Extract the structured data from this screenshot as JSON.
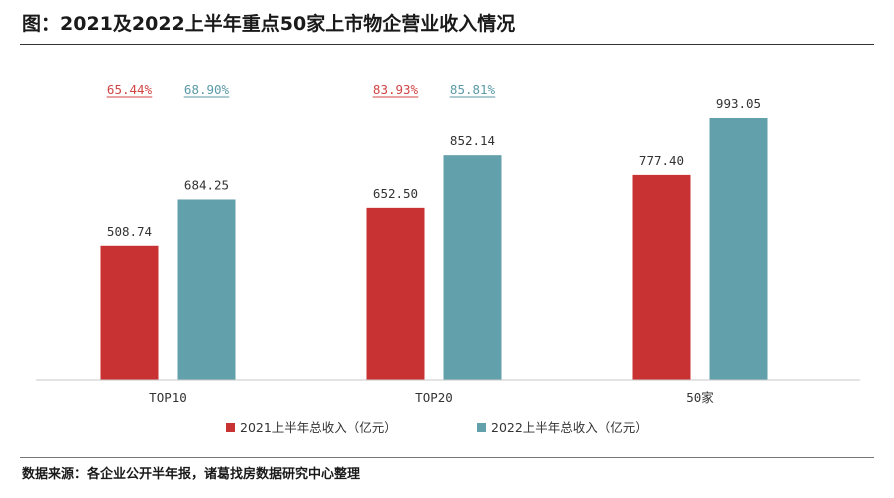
{
  "header": {
    "title": "图：2021及2022上半年重点50家上市物企营业收入情况"
  },
  "footer": {
    "source": "数据来源：各企业公开半年报，诸葛找房数据研究中心整理"
  },
  "chart_data": {
    "type": "bar",
    "categories": [
      "TOP10",
      "TOP20",
      "50家"
    ],
    "series": [
      {
        "name": "2021上半年总收入（亿元）",
        "values": [
          508.74,
          652.5,
          777.4
        ],
        "labels": [
          "508.74",
          "652.50",
          "777.40"
        ],
        "color": "#c83232"
      },
      {
        "name": "2022上半年总收入（亿元）",
        "values": [
          684.25,
          852.14,
          993.05
        ],
        "labels": [
          "684.25",
          "852.14",
          "993.05"
        ],
        "color": "#62a0ab"
      }
    ],
    "annotations": [
      {
        "category": "TOP10",
        "series": 0,
        "text": "65.44%",
        "color": "#d04444"
      },
      {
        "category": "TOP10",
        "series": 1,
        "text": "68.90%",
        "color": "#5a9aa6"
      },
      {
        "category": "TOP20",
        "series": 0,
        "text": "83.93%",
        "color": "#d04444"
      },
      {
        "category": "TOP20",
        "series": 1,
        "text": "85.81%",
        "color": "#5a9aa6"
      }
    ],
    "ylim": [
      0,
      1000
    ],
    "grid": false,
    "legend": "bottom"
  }
}
